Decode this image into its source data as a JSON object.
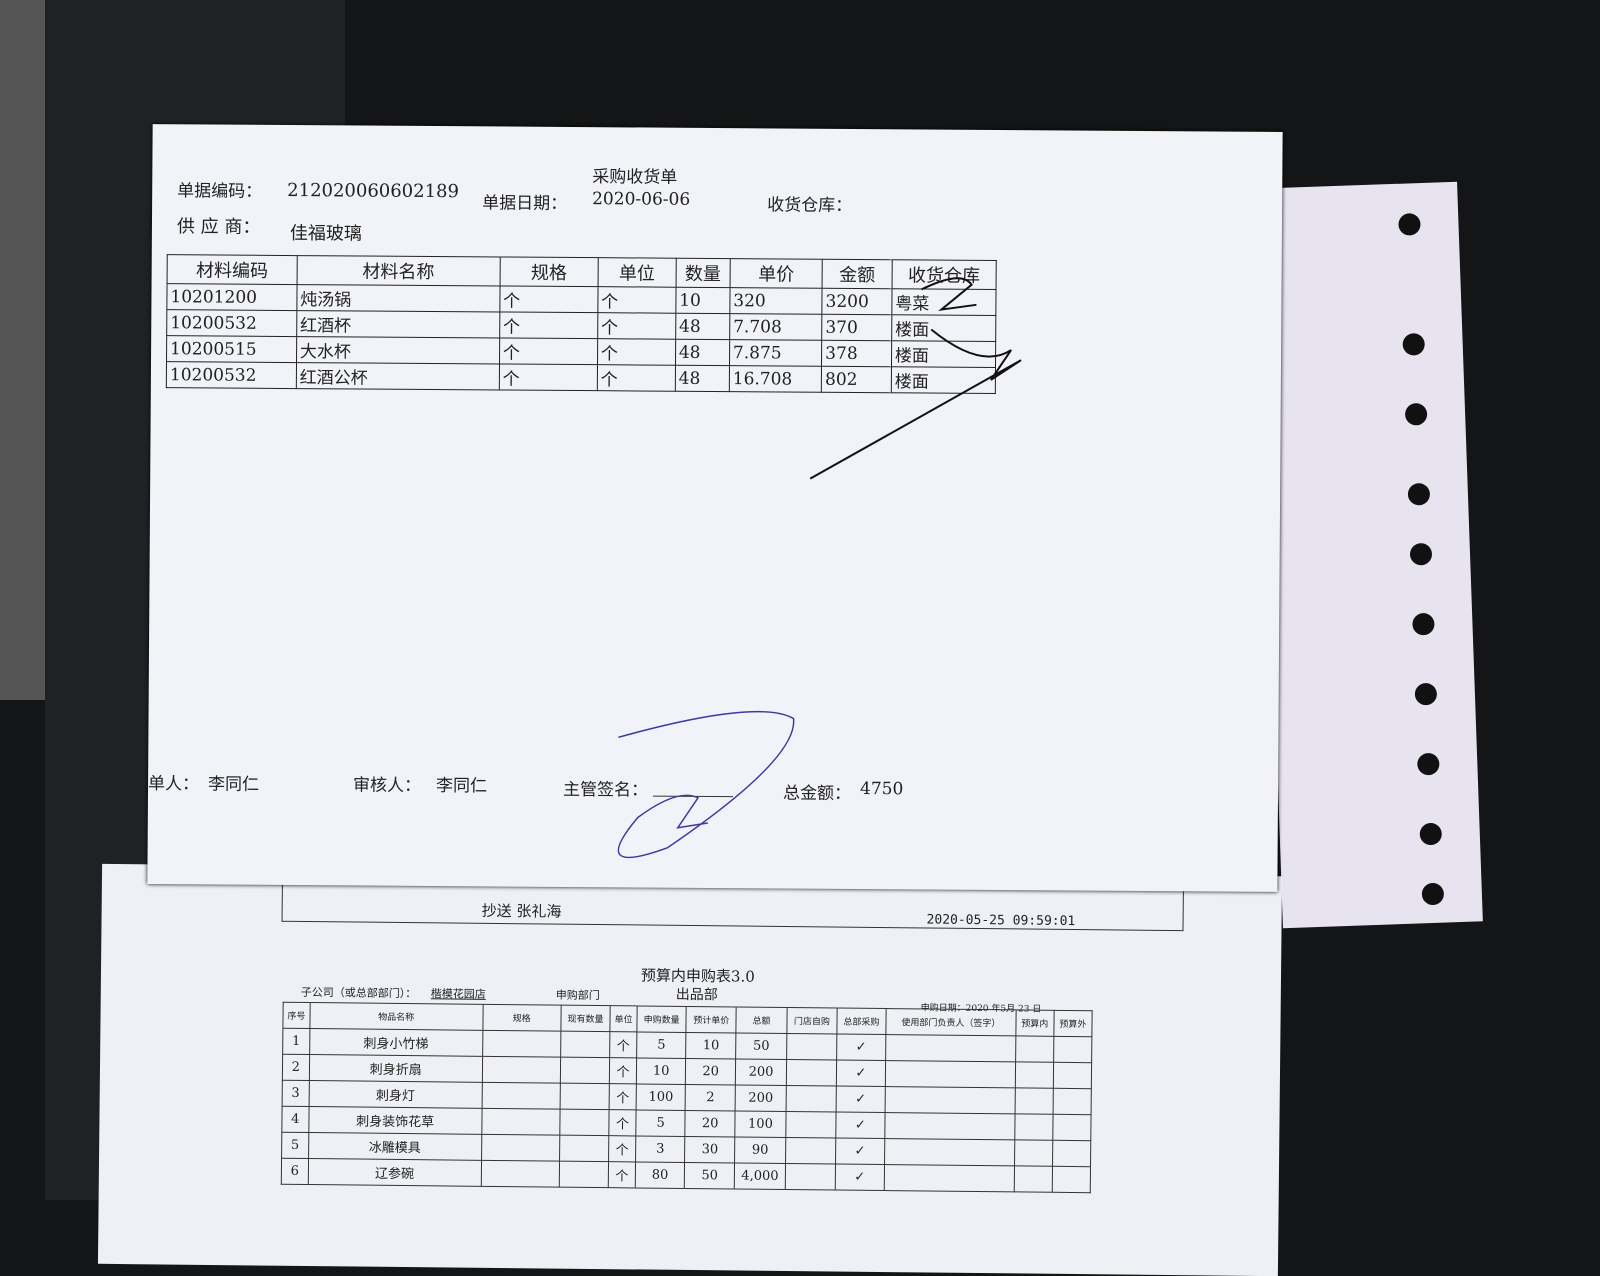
{
  "receipt": {
    "title": "采购收货单",
    "doc_no_label": "单据编码：",
    "doc_no": "212020060602189",
    "doc_date_label": "单据日期：",
    "doc_date": "2020-06-06",
    "warehouse_label": "收货仓库：",
    "supplier_label": "供 应 商：",
    "supplier": "佳福玻璃",
    "columns": [
      "材料编码",
      "材料名称",
      "规格",
      "单位",
      "数量",
      "单价",
      "金额",
      "收货仓库"
    ],
    "rows": [
      [
        "10201200",
        "炖汤锅",
        "个",
        "个",
        "10",
        "320",
        "3200",
        "粤菜"
      ],
      [
        "10200532",
        "红酒杯",
        "个",
        "个",
        "48",
        "7.708",
        "370",
        "楼面"
      ],
      [
        "10200515",
        "大水杯",
        "个",
        "个",
        "48",
        "7.875",
        "378",
        "楼面"
      ],
      [
        "10200532",
        "红酒公杯",
        "个",
        "个",
        "48",
        "16.708",
        "802",
        "楼面"
      ]
    ],
    "maker_label": "单人：",
    "maker": "李同仁",
    "reviewer_label": "审核人：",
    "reviewer": "李同仁",
    "supervisor_label": "主管签名：",
    "total_label": "总金额：",
    "total": "4750"
  },
  "lower": {
    "cc": "抄送 张礼海",
    "timestamp": "2020-05-25 09:59:01",
    "title": "预算内申购表3.0",
    "company_label": "子公司（或总部部门）：",
    "company": "楷模花园店",
    "dept_label": "申购部门",
    "dept": "出品部",
    "date_label": "申购日期：2020 年5月 23 日",
    "columns": [
      "序号",
      "物品名称",
      "规格",
      "现有数量",
      "单位",
      "申购数量",
      "预计单价",
      "总额",
      "门店自购",
      "总部采购",
      "使用部门负责人（签字）",
      "预算内",
      "预算外"
    ],
    "rows": [
      [
        "1",
        "刺身小竹梯",
        "",
        "",
        "个",
        "5",
        "10",
        "50",
        "",
        "✓",
        "",
        "",
        ""
      ],
      [
        "2",
        "刺身折扇",
        "",
        "",
        "个",
        "10",
        "20",
        "200",
        "",
        "✓",
        "",
        "",
        ""
      ],
      [
        "3",
        "刺身灯",
        "",
        "",
        "个",
        "100",
        "2",
        "200",
        "",
        "✓",
        "",
        "",
        ""
      ],
      [
        "4",
        "刺身装饰花草",
        "",
        "",
        "个",
        "5",
        "20",
        "100",
        "",
        "✓",
        "",
        "",
        ""
      ],
      [
        "5",
        "冰雕模具",
        "",
        "",
        "个",
        "3",
        "30",
        "90",
        "",
        "✓",
        "",
        "",
        ""
      ],
      [
        "6",
        "辽参碗",
        "",
        "",
        "个",
        "80",
        "50",
        "4,000",
        "",
        "✓",
        "",
        "",
        ""
      ]
    ]
  }
}
